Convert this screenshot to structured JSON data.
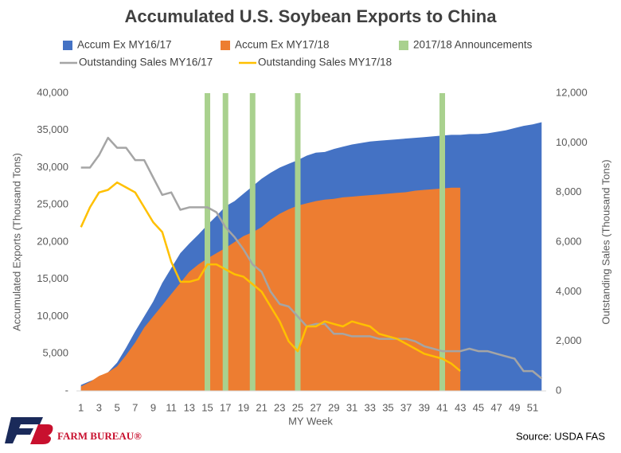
{
  "chart_data": {
    "type": "area",
    "title": "Accumulated U.S. Soybean Exports to China",
    "x_label": "MY Week",
    "y_label": "Accumulated Exports (Thousand Tons)",
    "y2_label": "Outstanding Sales (Thousand Tons)",
    "source": "Source: USDA FAS",
    "logo": "FARM BUREAU®",
    "categories": [
      1,
      null,
      3,
      null,
      5,
      null,
      7,
      null,
      9,
      null,
      11,
      null,
      13,
      null,
      15,
      null,
      17,
      null,
      19,
      null,
      21,
      null,
      23,
      null,
      25,
      null,
      27,
      null,
      29,
      null,
      31,
      null,
      33,
      null,
      35,
      null,
      37,
      null,
      39,
      null,
      41,
      null,
      43,
      null,
      45,
      null,
      47,
      null,
      49,
      null,
      51,
      null
    ],
    "ylim": [
      0,
      40000
    ],
    "yticks": [
      {
        "value": 0,
        "label": "-"
      },
      {
        "value": 5000,
        "label": "5,000"
      },
      {
        "value": 10000,
        "label": "10,000"
      },
      {
        "value": 15000,
        "label": "15,000"
      },
      {
        "value": 20000,
        "label": "20,000"
      },
      {
        "value": 25000,
        "label": "25,000"
      },
      {
        "value": 30000,
        "label": "30,000"
      },
      {
        "value": 35000,
        "label": "35,000"
      },
      {
        "value": 40000,
        "label": "40,000"
      }
    ],
    "y2lim": [
      0,
      12000
    ],
    "y2ticks": [
      0,
      {
        "value": 2000,
        "label": "2,000"
      },
      {
        "value": 4000,
        "label": "4,000"
      },
      {
        "value": 6000,
        "label": "6,000"
      },
      {
        "value": 8000,
        "label": "8,000"
      },
      {
        "value": 10000,
        "label": "10,000"
      },
      {
        "value": 12000,
        "label": "12,000"
      }
    ],
    "grid": false,
    "series": [
      {
        "name": "Accum Ex MY16/17",
        "type": "area",
        "color": "#4472c4",
        "values": [
          800,
          1300,
          1800,
          2500,
          3800,
          5800,
          8000,
          10000,
          12000,
          14500,
          16500,
          18500,
          19800,
          21000,
          22300,
          23500,
          24800,
          25500,
          26500,
          27500,
          28500,
          29300,
          30000,
          30500,
          31000,
          31600,
          32000,
          32100,
          32500,
          32800,
          33100,
          33300,
          33500,
          33600,
          33700,
          33800,
          33900,
          34000,
          34100,
          34200,
          34300,
          34400,
          34400,
          34500,
          34500,
          34600,
          34800,
          35000,
          35300,
          35600,
          35800,
          36100
        ]
      },
      {
        "name": "Accum Ex MY17/18",
        "type": "area",
        "color": "#ed7d31",
        "values": [
          600,
          1200,
          2000,
          2500,
          3300,
          4800,
          6500,
          8500,
          10000,
          11500,
          13000,
          14500,
          16000,
          17000,
          17800,
          18500,
          19200,
          20000,
          20800,
          21300,
          22000,
          23000,
          23800,
          24400,
          24900,
          25200,
          25500,
          25700,
          25800,
          26000,
          26100,
          26200,
          26300,
          26400,
          26500,
          26600,
          26700,
          26900,
          27000,
          27100,
          27200,
          27300,
          27300,
          null,
          null,
          null,
          null,
          null,
          null,
          null,
          null,
          null
        ]
      },
      {
        "name": "2017/18 Announcements",
        "type": "bar",
        "color": "#a9d18e",
        "values": [
          null,
          null,
          null,
          null,
          null,
          null,
          null,
          null,
          null,
          null,
          null,
          null,
          null,
          null,
          40000,
          null,
          40000,
          null,
          null,
          40000,
          null,
          null,
          null,
          null,
          40000,
          null,
          null,
          null,
          null,
          null,
          null,
          null,
          null,
          null,
          null,
          null,
          null,
          null,
          null,
          null,
          40000,
          null,
          null,
          null,
          null,
          null,
          null,
          null,
          null,
          null,
          null,
          null
        ]
      },
      {
        "name": "Outstanding Sales MY16/17",
        "type": "line",
        "axis": "y2",
        "color": "#a5a5a5",
        "values": [
          9000,
          9000,
          9500,
          10200,
          9800,
          9800,
          9300,
          9300,
          8600,
          7900,
          8000,
          7300,
          7400,
          7400,
          7400,
          7200,
          6600,
          6200,
          5700,
          5100,
          4800,
          4000,
          3500,
          3400,
          3000,
          2600,
          2700,
          2700,
          2300,
          2300,
          2200,
          2200,
          2200,
          2100,
          2100,
          2100,
          2100,
          2000,
          1800,
          1700,
          1600,
          1600,
          1600,
          1700,
          1600,
          1600,
          1500,
          1400,
          1300,
          800,
          800,
          500
        ]
      },
      {
        "name": "Outstanding Sales MY17/18",
        "type": "line",
        "axis": "y2",
        "color": "#ffc000",
        "values": [
          6600,
          7400,
          8000,
          8100,
          8400,
          8200,
          8000,
          7400,
          6800,
          6400,
          5200,
          4400,
          4400,
          4500,
          5100,
          5100,
          4900,
          4700,
          4600,
          4300,
          4000,
          3400,
          2800,
          2000,
          1600,
          2600,
          2600,
          2800,
          2700,
          2600,
          2800,
          2700,
          2600,
          2300,
          2200,
          2100,
          1900,
          1700,
          1500,
          1400,
          1300,
          1100,
          800,
          null,
          null,
          null,
          null,
          null,
          null,
          null,
          null,
          null
        ]
      }
    ]
  }
}
